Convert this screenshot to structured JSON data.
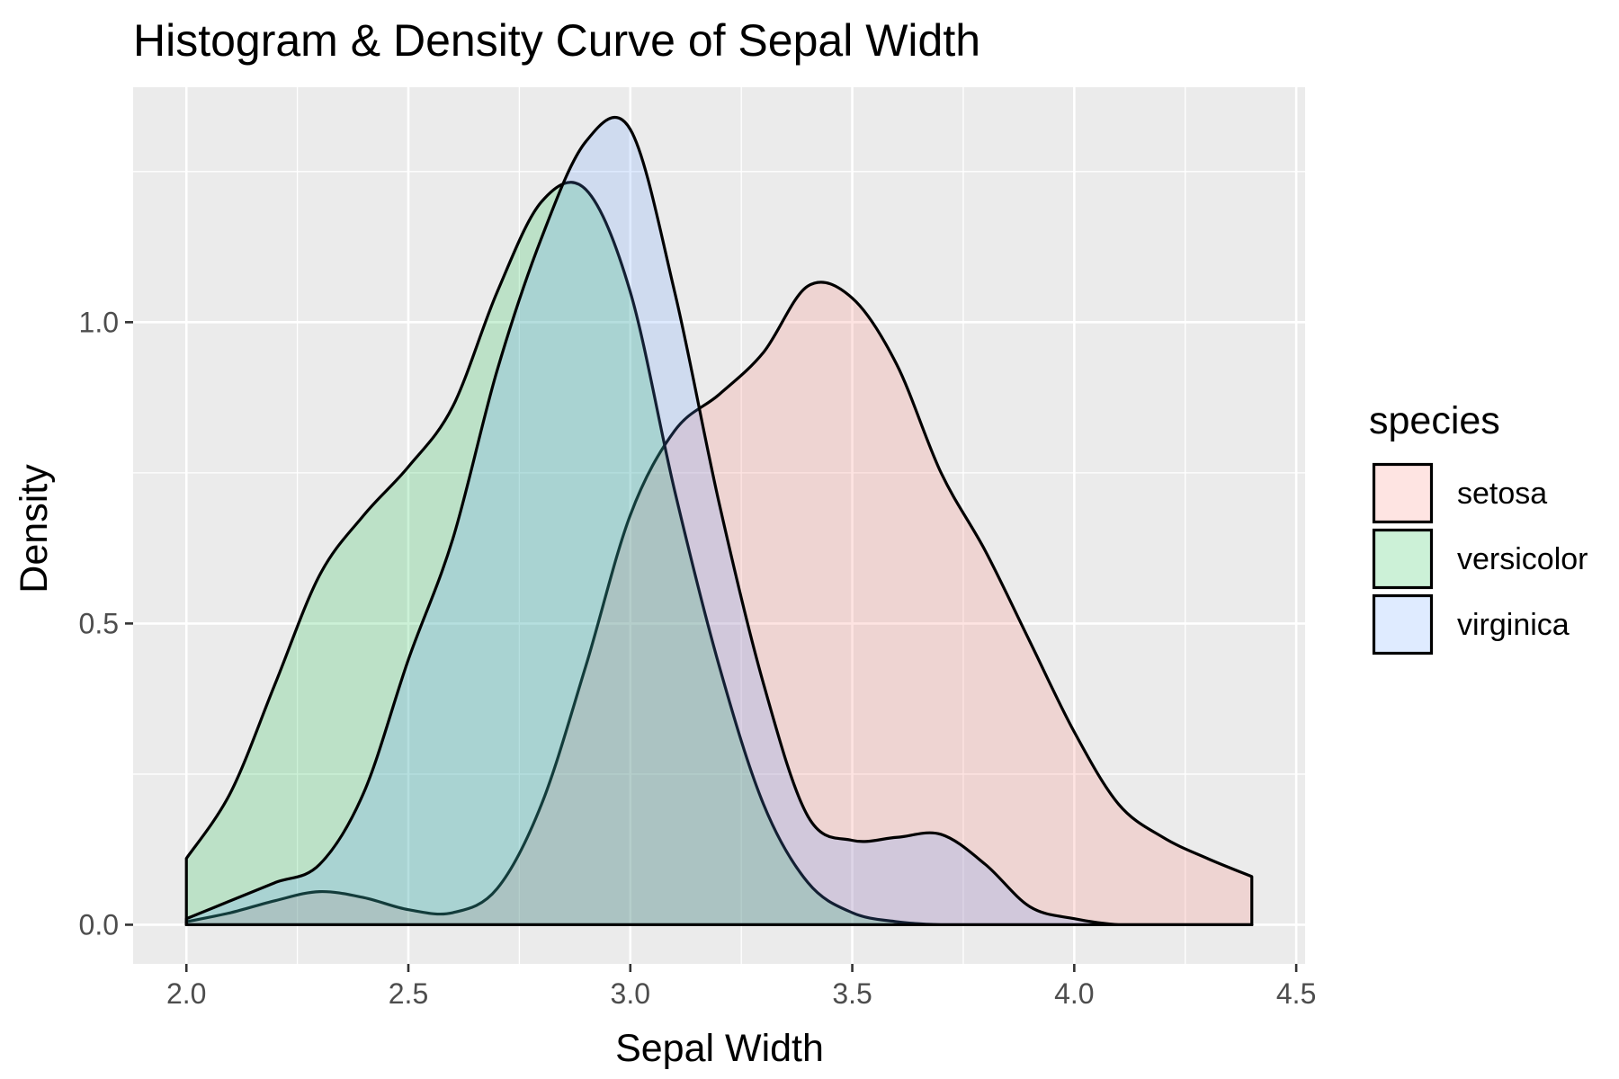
{
  "chart_data": {
    "type": "area",
    "title": "Histogram & Density Curve of Sepal Width",
    "xlabel": "Sepal Width",
    "ylabel": "Density",
    "xlim": [
      1.88,
      4.52
    ],
    "ylim": [
      -0.065,
      1.39
    ],
    "x_ticks": [
      2.0,
      2.5,
      3.0,
      3.5,
      4.0,
      4.5
    ],
    "x_tick_labels": [
      "2.0",
      "2.5",
      "3.0",
      "3.5",
      "4.0",
      "4.5"
    ],
    "y_ticks": [
      0.0,
      0.5,
      1.0
    ],
    "y_tick_labels": [
      "0.0",
      "0.5",
      "1.0"
    ],
    "grid": true,
    "legend": {
      "title": "species",
      "position": "right"
    },
    "series": [
      {
        "name": "setosa",
        "color": "#F8766D",
        "x": [
          2.0,
          2.1,
          2.2,
          2.3,
          2.4,
          2.5,
          2.6,
          2.7,
          2.8,
          2.9,
          3.0,
          3.1,
          3.2,
          3.3,
          3.4,
          3.5,
          3.6,
          3.7,
          3.8,
          3.9,
          4.0,
          4.1,
          4.2,
          4.3,
          4.4
        ],
        "y": [
          0.005,
          0.02,
          0.04,
          0.055,
          0.045,
          0.025,
          0.02,
          0.06,
          0.2,
          0.43,
          0.68,
          0.82,
          0.88,
          0.95,
          1.06,
          1.04,
          0.93,
          0.75,
          0.62,
          0.47,
          0.32,
          0.2,
          0.145,
          0.11,
          0.08
        ]
      },
      {
        "name": "versicolor",
        "color": "#00BA38",
        "x": [
          2.0,
          2.1,
          2.2,
          2.3,
          2.4,
          2.5,
          2.6,
          2.7,
          2.8,
          2.9,
          3.0,
          3.1,
          3.2,
          3.3,
          3.4,
          3.5,
          3.6,
          3.7,
          3.8,
          3.9,
          4.0,
          4.1,
          4.2,
          4.3,
          4.4
        ],
        "y": [
          0.11,
          0.22,
          0.4,
          0.58,
          0.68,
          0.76,
          0.86,
          1.05,
          1.2,
          1.22,
          1.05,
          0.72,
          0.43,
          0.2,
          0.07,
          0.02,
          0.005,
          0.0,
          0.0,
          0.0,
          0.0,
          0.0,
          0.0,
          0.0,
          0.0
        ]
      },
      {
        "name": "virginica",
        "color": "#619CFF",
        "x": [
          2.0,
          2.1,
          2.2,
          2.3,
          2.4,
          2.5,
          2.6,
          2.7,
          2.8,
          2.9,
          3.0,
          3.1,
          3.2,
          3.3,
          3.4,
          3.5,
          3.6,
          3.7,
          3.8,
          3.9,
          4.0,
          4.1,
          4.2,
          4.3,
          4.4
        ],
        "y": [
          0.01,
          0.04,
          0.07,
          0.1,
          0.22,
          0.44,
          0.64,
          0.92,
          1.14,
          1.3,
          1.32,
          1.05,
          0.7,
          0.4,
          0.18,
          0.14,
          0.145,
          0.15,
          0.1,
          0.03,
          0.01,
          0.0,
          0.0,
          0.0,
          0.0
        ]
      }
    ]
  }
}
